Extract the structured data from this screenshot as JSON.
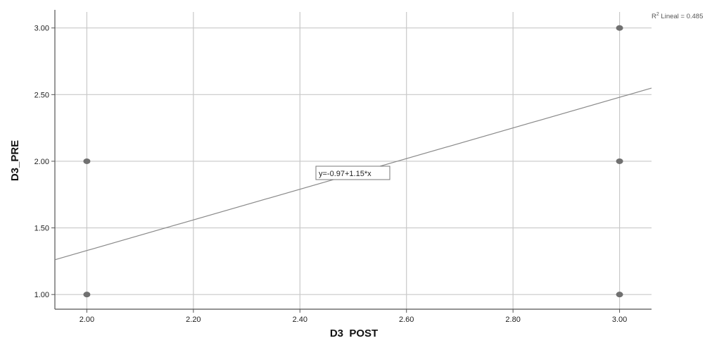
{
  "chart_data": {
    "type": "scatter",
    "xlabel": "D3  POST",
    "ylabel": "D3_PRE",
    "xlim": [
      1.94,
      3.06
    ],
    "ylim": [
      0.89,
      3.12
    ],
    "x_ticks": [
      "2.00",
      "2.20",
      "2.40",
      "2.60",
      "2.80",
      "3.00"
    ],
    "y_ticks": [
      "1.00",
      "1.50",
      "2.00",
      "2.50",
      "3.00"
    ],
    "grid": true,
    "points": [
      {
        "x": 2.0,
        "y": 2.0
      },
      {
        "x": 2.0,
        "y": 1.0
      },
      {
        "x": 3.0,
        "y": 3.0
      },
      {
        "x": 3.0,
        "y": 2.0
      },
      {
        "x": 3.0,
        "y": 1.0
      }
    ],
    "fit_line": {
      "intercept": -0.97,
      "slope": 1.15
    },
    "equation_label": "y=-0.97+1.15*x",
    "r2_prefix": "R",
    "r2_sup": "2",
    "r2_rest": " Lineal = 0.485",
    "colors": {
      "points": "#707070",
      "grid": "#c8c8c8",
      "fit_line": "#8a8a8a",
      "axis": "#555555"
    }
  }
}
